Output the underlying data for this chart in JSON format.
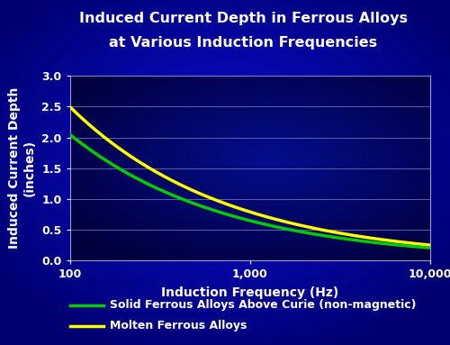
{
  "title_line1": "Induced Current Depth in Ferrous Alloys",
  "title_line2": "at Various Induction Frequencies",
  "xlabel": "Induction Frequency (Hz)",
  "ylabel_line1": "Induced Current Depth",
  "ylabel_line2": "(inches)",
  "xmin": 100,
  "xmax": 10000,
  "ymin": 0.0,
  "ymax": 3.0,
  "xticks": [
    100,
    1000,
    10000
  ],
  "xticklabels": [
    "100",
    "1,000",
    "10,000"
  ],
  "yticks": [
    0.0,
    0.5,
    1.0,
    1.5,
    2.0,
    2.5,
    3.0
  ],
  "green_start": 2.05,
  "yellow_start": 2.5,
  "green_color": "#00CC00",
  "yellow_color": "#FFFF00",
  "title_color": "#FFFFFF",
  "axis_label_color": "#FFFFFF",
  "tick_label_color": "#FFFFFF",
  "grid_color": "#7777BB",
  "legend_label_green": "Solid Ferrous Alloys Above Curie (non-magnetic)",
  "legend_label_yellow": "Molten Ferrous Alloys",
  "line_width": 2.5,
  "title_fontsize": 11.5,
  "axis_label_fontsize": 10,
  "tick_fontsize": 9,
  "legend_fontsize": 9
}
